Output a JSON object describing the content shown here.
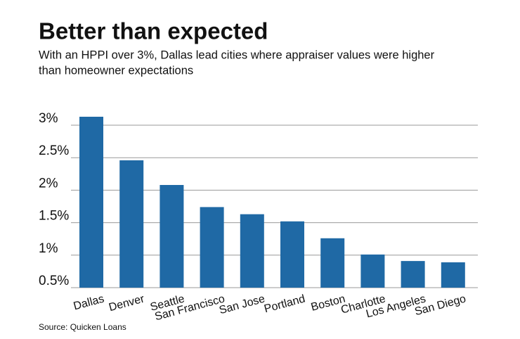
{
  "chart_data": {
    "type": "bar",
    "title": "Better than expected",
    "subtitle": [
      "With an HPPI over 3%, Dallas lead cities where appraiser values were higher",
      "than homeowner expectations"
    ],
    "source": "Source: Quicken Loans",
    "categories": [
      "Dallas",
      "Denver",
      "Seattle",
      "San Francisco",
      "San Jose",
      "Portland",
      "Boston",
      "Charlotte",
      "Los Angeles",
      "San Diego"
    ],
    "values": [
      3.13,
      2.46,
      2.08,
      1.74,
      1.63,
      1.52,
      1.26,
      1.01,
      0.91,
      0.89
    ],
    "color": "#1f69a5",
    "ylim": [
      0.5,
      3.2
    ],
    "yticks": [
      {
        "value": 0.5,
        "label": "0.5%"
      },
      {
        "value": 1,
        "label": "1%"
      },
      {
        "value": 1.5,
        "label": "1.5%"
      },
      {
        "value": 2,
        "label": "2%"
      },
      {
        "value": 2.5,
        "label": "2.5%"
      },
      {
        "value": 3,
        "label": "3%"
      }
    ],
    "grid": true
  }
}
